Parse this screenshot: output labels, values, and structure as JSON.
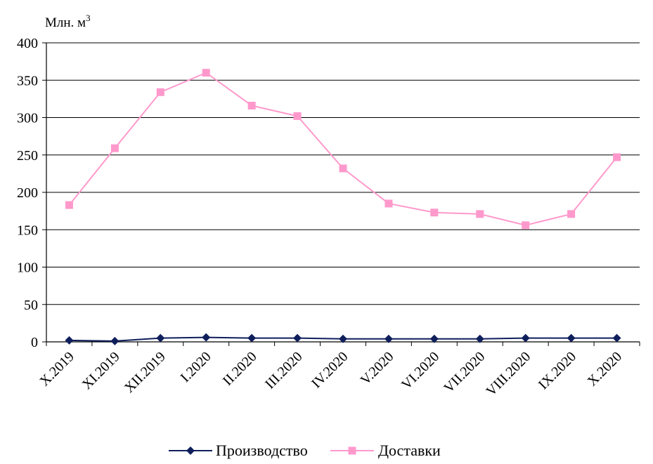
{
  "chart_data": {
    "type": "line",
    "title": "",
    "xlabel": "",
    "ylabel": "Млн. м",
    "ylabel_superscript": "3",
    "ylim": [
      0,
      400
    ],
    "yticks": [
      0,
      50,
      100,
      150,
      200,
      250,
      300,
      350,
      400
    ],
    "grid": "horizontal",
    "legend_position": "bottom",
    "categories": [
      "X.2019",
      "XI.2019",
      "XII.2019",
      "I.2020",
      "II.2020",
      "III.2020",
      "IV.2020",
      "V.2020",
      "VI.2020",
      "VII.2020",
      "VIII.2020",
      "IX.2020",
      "X.2020"
    ],
    "series": [
      {
        "name": "Производство",
        "color": "#0f1f5c",
        "marker": "diamond",
        "values": [
          2,
          1,
          5,
          6,
          5,
          5,
          4,
          4,
          4,
          4,
          5,
          5,
          5
        ]
      },
      {
        "name": "Доставки",
        "color": "#ff99cc",
        "marker": "square",
        "values": [
          183,
          259,
          334,
          360,
          316,
          302,
          232,
          185,
          173,
          171,
          156,
          171,
          247
        ]
      }
    ]
  }
}
